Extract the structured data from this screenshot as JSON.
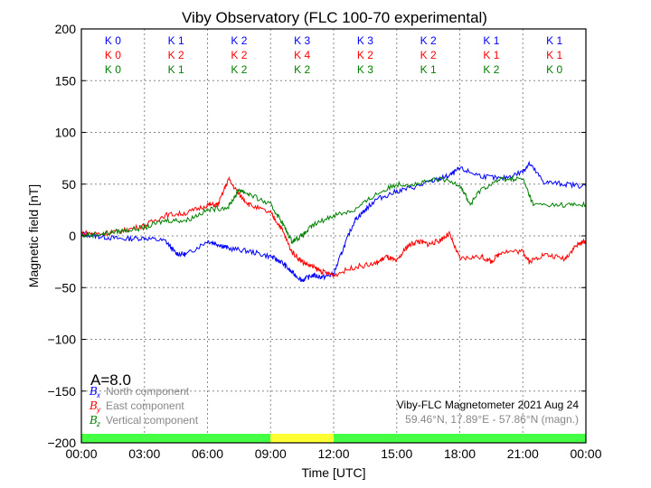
{
  "chart_data": {
    "type": "line",
    "title": "Viby Observatory (FLC 100-70 experimental)",
    "xlabel": "Time [UTC]",
    "ylabel": "Magnetic field [nT]",
    "xlim": [
      0,
      24
    ],
    "ylim": [
      -200,
      200
    ],
    "grid": true,
    "yticks": [
      200,
      150,
      100,
      50,
      0,
      -50,
      -100,
      -150,
      -200
    ],
    "ytick_labels": [
      "200",
      "150",
      "100",
      "50",
      "0",
      "−50",
      "−100",
      "−150",
      "−200"
    ],
    "xtick_labels": [
      "00:00",
      "03:00",
      "06:00",
      "09:00",
      "12:00",
      "15:00",
      "18:00",
      "21:00",
      "00:00"
    ],
    "k_indices": {
      "x": [
        "K 0",
        "K 1",
        "K 2",
        "K 3",
        "K 3",
        "K 2",
        "K 1",
        "K 1"
      ],
      "y": [
        "K 0",
        "K 2",
        "K 2",
        "K 4",
        "K 2",
        "K 2",
        "K 1",
        "K 1"
      ],
      "z": [
        "K 0",
        "K 1",
        "K 2",
        "K 2",
        "K 3",
        "K 1",
        "K 2",
        "K 0"
      ]
    },
    "activity_bar": [
      "green",
      "green",
      "green",
      "yellow",
      "green",
      "green",
      "green",
      "green"
    ],
    "activity_colors": {
      "green": "#44ff44",
      "yellow": "#ffff33"
    },
    "a_index": "A=8.0",
    "legend_placement": "bottom-left",
    "series": [
      {
        "name": "North component",
        "symbol": "B",
        "sub": "x",
        "color": "#0000ff",
        "x": [
          0,
          1,
          2,
          3,
          4,
          4.5,
          5,
          6,
          6.5,
          7,
          8,
          9,
          9.5,
          10,
          10.5,
          11,
          11.5,
          12,
          12.5,
          13,
          13.5,
          14,
          15,
          16,
          17,
          17.5,
          18,
          19,
          20,
          21,
          21.3,
          22,
          23,
          24
        ],
        "y": [
          2,
          -1,
          -3,
          -2,
          -5,
          -17,
          -18,
          -5,
          -8,
          -12,
          -15,
          -20,
          -25,
          -35,
          -43,
          -38,
          -40,
          -37,
          -10,
          15,
          25,
          35,
          43,
          48,
          55,
          58,
          65,
          58,
          55,
          62,
          70,
          52,
          50,
          48
        ]
      },
      {
        "name": "East component",
        "symbol": "B",
        "sub": "y",
        "color": "#ff0000",
        "x": [
          0,
          1,
          2,
          3,
          4,
          5,
          6,
          6.5,
          7,
          7.5,
          8,
          9,
          9.5,
          10,
          10.5,
          11,
          11.5,
          12,
          13,
          14,
          14.5,
          15,
          15.5,
          16,
          16.5,
          17,
          17.5,
          18,
          19,
          19.5,
          20,
          21,
          21.3,
          22,
          23,
          23.5,
          24
        ],
        "y": [
          3,
          2,
          5,
          10,
          20,
          22,
          30,
          30,
          55,
          40,
          30,
          22,
          8,
          -15,
          -25,
          -30,
          -35,
          -38,
          -30,
          -27,
          -20,
          -25,
          -10,
          -5,
          -8,
          -5,
          2,
          -22,
          -20,
          -25,
          -15,
          -15,
          -25,
          -18,
          -22,
          -10,
          -5
        ]
      },
      {
        "name": "Vertical component",
        "symbol": "B",
        "sub": "z",
        "color": "#008000",
        "x": [
          0,
          1,
          2,
          3,
          4,
          5,
          6,
          7,
          7.5,
          8,
          9,
          9.5,
          10,
          10.5,
          11,
          12,
          13,
          14,
          15,
          16,
          17,
          18,
          18.5,
          19,
          20,
          21,
          21.5,
          23,
          24
        ],
        "y": [
          0,
          2,
          5,
          8,
          15,
          15,
          25,
          28,
          45,
          40,
          30,
          15,
          -5,
          0,
          10,
          20,
          25,
          40,
          50,
          50,
          55,
          50,
          30,
          45,
          55,
          55,
          30,
          30,
          30
        ]
      }
    ],
    "annotation_title": "Viby-FLC Magnetometer 2021 Aug 24",
    "annotation_location": "59.46°N, 17.89°E - 57.86°N (magn.)"
  }
}
